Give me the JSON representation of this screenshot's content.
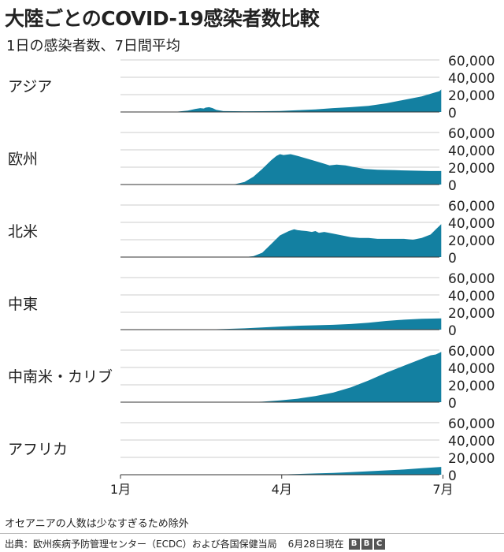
{
  "title": "大陸ごとのCOVID-19感染者数比較",
  "subtitle": "1日の感染者数、7日間平均",
  "footnote": "オセアニアの人数は少なすぎるため除外",
  "footer": {
    "source": "出典：欧州疾病予防管理センター（ECDC）および各国保健当局",
    "date": "6月28日現在",
    "logo": [
      "B",
      "B",
      "C"
    ]
  },
  "colors": {
    "area": "#1380A1",
    "grid": "#cccccc",
    "baseline": "#333333"
  },
  "chart_data": {
    "type": "area",
    "x_axis": {
      "ticks": [
        {
          "label": "1月",
          "day": 0
        },
        {
          "label": "4月",
          "day": 91
        },
        {
          "label": "7月",
          "day": 182
        }
      ],
      "range": [
        0,
        180
      ]
    },
    "y_axis": {
      "ticks": [
        0,
        20000,
        40000,
        60000
      ],
      "tick_labels": [
        "0",
        "20,000",
        "40,000",
        "60,000"
      ],
      "range": [
        0,
        60000
      ]
    },
    "series": [
      {
        "name": "アジア",
        "points": [
          [
            0,
            0
          ],
          [
            30,
            0
          ],
          [
            38,
            1500
          ],
          [
            42,
            3500
          ],
          [
            45,
            4500
          ],
          [
            47,
            4000
          ],
          [
            48,
            5000
          ],
          [
            50,
            5500
          ],
          [
            52,
            4500
          ],
          [
            54,
            2500
          ],
          [
            58,
            1000
          ],
          [
            64,
            900
          ],
          [
            70,
            800
          ],
          [
            80,
            900
          ],
          [
            90,
            1200
          ],
          [
            100,
            2000
          ],
          [
            110,
            3000
          ],
          [
            120,
            4500
          ],
          [
            130,
            5500
          ],
          [
            140,
            7000
          ],
          [
            150,
            10000
          ],
          [
            160,
            14000
          ],
          [
            170,
            18000
          ],
          [
            175,
            21000
          ],
          [
            180,
            24000
          ],
          [
            181,
            26000
          ]
        ]
      },
      {
        "name": "欧州",
        "points": [
          [
            0,
            0
          ],
          [
            60,
            0
          ],
          [
            65,
            500
          ],
          [
            70,
            3000
          ],
          [
            75,
            9000
          ],
          [
            80,
            18000
          ],
          [
            85,
            28000
          ],
          [
            88,
            33000
          ],
          [
            90,
            35000
          ],
          [
            92,
            34000
          ],
          [
            96,
            35000
          ],
          [
            100,
            33000
          ],
          [
            105,
            30000
          ],
          [
            110,
            27000
          ],
          [
            115,
            24000
          ],
          [
            118,
            22000
          ],
          [
            122,
            23000
          ],
          [
            127,
            22000
          ],
          [
            132,
            20000
          ],
          [
            138,
            18000
          ],
          [
            145,
            17000
          ],
          [
            155,
            16500
          ],
          [
            165,
            16000
          ],
          [
            175,
            15500
          ],
          [
            181,
            15500
          ]
        ]
      },
      {
        "name": "北米",
        "points": [
          [
            0,
            0
          ],
          [
            70,
            0
          ],
          [
            75,
            1000
          ],
          [
            80,
            5000
          ],
          [
            85,
            15000
          ],
          [
            90,
            25000
          ],
          [
            95,
            30000
          ],
          [
            98,
            32000
          ],
          [
            100,
            31000
          ],
          [
            105,
            30000
          ],
          [
            108,
            29000
          ],
          [
            110,
            30000
          ],
          [
            112,
            28000
          ],
          [
            115,
            29000
          ],
          [
            120,
            27000
          ],
          [
            125,
            25000
          ],
          [
            130,
            23000
          ],
          [
            135,
            22000
          ],
          [
            140,
            22000
          ],
          [
            145,
            21000
          ],
          [
            150,
            21000
          ],
          [
            155,
            21000
          ],
          [
            160,
            21000
          ],
          [
            165,
            20000
          ],
          [
            170,
            22000
          ],
          [
            175,
            26000
          ],
          [
            178,
            32000
          ],
          [
            181,
            38000
          ]
        ]
      },
      {
        "name": "中東",
        "points": [
          [
            0,
            0
          ],
          [
            40,
            0
          ],
          [
            50,
            300
          ],
          [
            60,
            800
          ],
          [
            70,
            1500
          ],
          [
            80,
            2500
          ],
          [
            90,
            3500
          ],
          [
            100,
            4500
          ],
          [
            110,
            5000
          ],
          [
            120,
            5500
          ],
          [
            130,
            6500
          ],
          [
            140,
            8000
          ],
          [
            150,
            10000
          ],
          [
            160,
            11500
          ],
          [
            170,
            12500
          ],
          [
            181,
            13000
          ]
        ]
      },
      {
        "name": "中南米・カリブ",
        "points": [
          [
            0,
            0
          ],
          [
            70,
            0
          ],
          [
            80,
            500
          ],
          [
            90,
            2000
          ],
          [
            100,
            4000
          ],
          [
            110,
            7000
          ],
          [
            120,
            11000
          ],
          [
            130,
            17000
          ],
          [
            140,
            25000
          ],
          [
            150,
            34000
          ],
          [
            160,
            42000
          ],
          [
            170,
            50000
          ],
          [
            175,
            54000
          ],
          [
            178,
            55000
          ],
          [
            181,
            58000
          ]
        ]
      },
      {
        "name": "アフリカ",
        "points": [
          [
            0,
            0
          ],
          [
            80,
            0
          ],
          [
            90,
            300
          ],
          [
            100,
            800
          ],
          [
            110,
            1500
          ],
          [
            120,
            2000
          ],
          [
            130,
            3000
          ],
          [
            140,
            4000
          ],
          [
            150,
            5000
          ],
          [
            160,
            6000
          ],
          [
            170,
            7500
          ],
          [
            181,
            9000
          ]
        ]
      }
    ]
  }
}
